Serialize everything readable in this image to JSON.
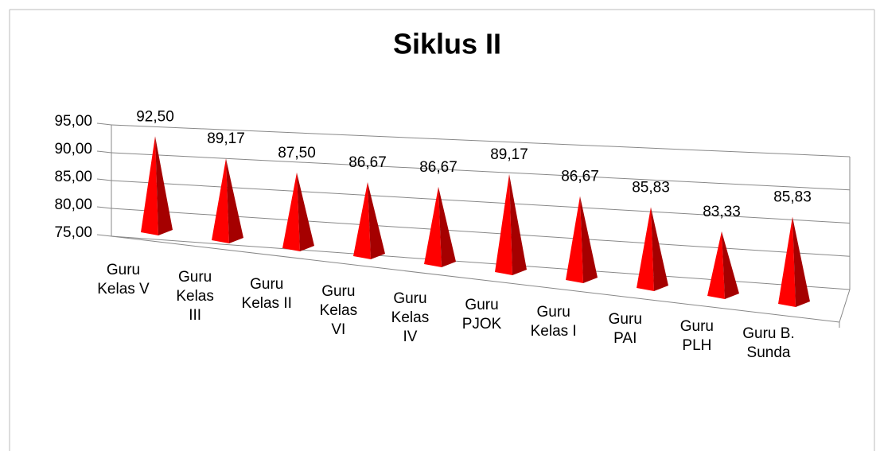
{
  "chart_data": {
    "type": "pyramid3d",
    "title": "Siklus II",
    "categories": [
      "Guru\nKelas V",
      "Guru\nKelas\nIII",
      "Guru\nKelas II",
      "Guru\nKelas\nVI",
      "Guru\nKelas\nIV",
      "Guru\nPJOK",
      "Guru\nKelas I",
      "Guru\nPAI",
      "Guru\nPLH",
      "Guru B.\nSunda"
    ],
    "values": [
      92.5,
      89.17,
      87.5,
      86.67,
      86.67,
      89.17,
      86.67,
      85.83,
      83.33,
      85.83
    ],
    "value_labels": [
      "92,50",
      "89,17",
      "87,50",
      "86,67",
      "86,67",
      "89,17",
      "86,67",
      "85,83",
      "83,33",
      "85,83"
    ],
    "color": "#ff0000",
    "ylim": [
      75,
      95
    ],
    "yticks": [
      {
        "value": 75,
        "label": "75,00"
      },
      {
        "value": 80,
        "label": "80,00"
      },
      {
        "value": 85,
        "label": "85,00"
      },
      {
        "value": 90,
        "label": "90,00"
      },
      {
        "value": 95,
        "label": "95,00"
      }
    ],
    "grid": true
  }
}
